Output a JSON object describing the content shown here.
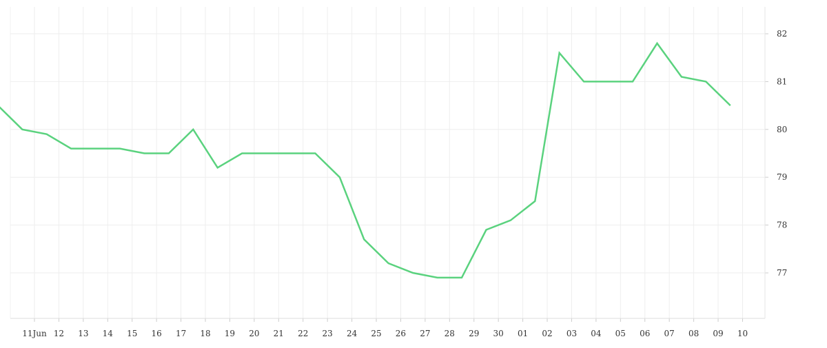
{
  "chart_data": {
    "type": "line",
    "title": "",
    "xlabel": "",
    "ylabel": "",
    "x_tick_labels": [
      "11Jun",
      "12",
      "13",
      "14",
      "15",
      "16",
      "17",
      "18",
      "19",
      "20",
      "21",
      "22",
      "23",
      "24",
      "25",
      "26",
      "27",
      "28",
      "29",
      "30",
      "01",
      "02",
      "03",
      "04",
      "05",
      "06",
      "07",
      "08",
      "09",
      "10"
    ],
    "y_tick_labels": [
      "77",
      "78",
      "79",
      "80",
      "81",
      "82"
    ],
    "ylim": [
      76.2,
      82.6
    ],
    "y_axis_position": "right",
    "grid": true,
    "line_color": "#5ad27e",
    "grid_color": "#eeeeee",
    "series": [
      {
        "x": [
          "2024-06-10",
          "2024-06-11",
          "2024-06-12",
          "2024-06-13",
          "2024-06-14",
          "2024-06-15",
          "2024-06-16",
          "2024-06-17",
          "2024-06-18",
          "2024-06-19",
          "2024-06-20",
          "2024-06-21",
          "2024-06-22",
          "2024-06-23",
          "2024-06-24",
          "2024-06-25",
          "2024-06-26",
          "2024-06-27",
          "2024-06-28",
          "2024-06-29",
          "2024-06-30",
          "2024-07-01",
          "2024-07-02",
          "2024-07-03",
          "2024-07-04",
          "2024-07-05",
          "2024-07-06",
          "2024-07-07",
          "2024-07-08",
          "2024-07-09",
          "2024-07-10"
        ],
        "values": [
          80.5,
          80.0,
          79.9,
          79.6,
          79.6,
          79.6,
          79.5,
          79.5,
          80.0,
          79.2,
          79.5,
          79.5,
          79.5,
          79.5,
          79.0,
          77.7,
          77.2,
          77.0,
          76.9,
          76.9,
          77.9,
          78.1,
          78.5,
          81.6,
          81.0,
          81.0,
          81.0,
          81.8,
          81.1,
          81.0,
          80.5
        ]
      }
    ]
  }
}
